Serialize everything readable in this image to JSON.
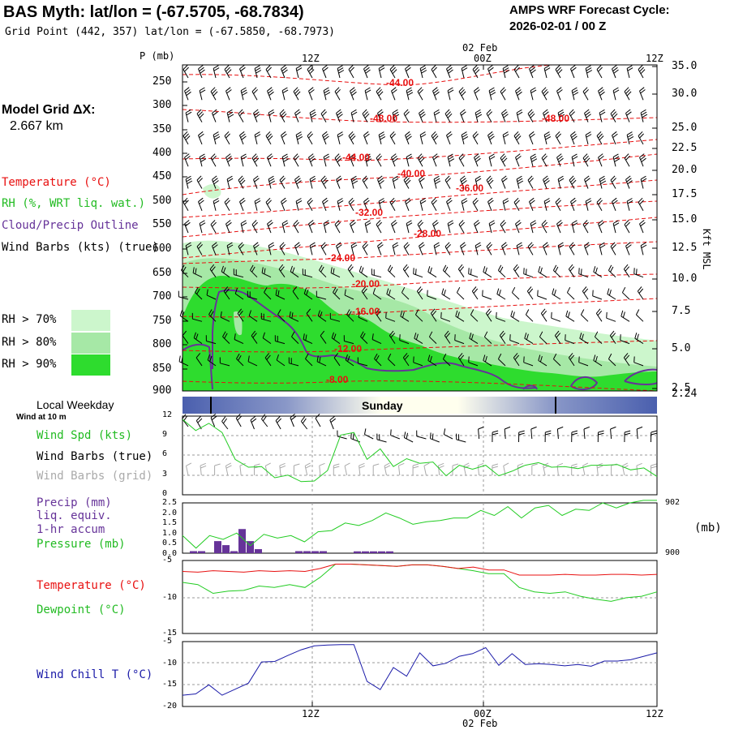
{
  "header": {
    "title": "BAS Myth:  lat/lon = (-67.5705, -68.7834)",
    "grid_point": "Grid Point (442, 357) lat/lon = (-67.5850, -68.7973)",
    "cycle_label": "AMPS WRF Forecast Cycle:",
    "cycle_time": "2026-02-01 / 00  Z"
  },
  "sidebar": {
    "model_grid_label": "Model Grid ΔX:",
    "model_grid_value": "2.667 km",
    "temp_legend": "Temperature (°C)",
    "rh_legend": "RH (%, WRT liq. wat.)",
    "cloud_legend": "Cloud/Precip Outline",
    "wind_legend": "Wind Barbs (kts) (true)",
    "rh70": "RH > 70%",
    "rh80": "RH > 80%",
    "rh90": "RH > 90%",
    "local_weekday": "Local Weekday",
    "wind_at": "Wind at 10 m",
    "wind_spd": "Wind Spd (kts)",
    "wind_barbs_true": "Wind Barbs (true)",
    "wind_barbs_grid": "Wind Barbs (grid)",
    "precip1": "Precip (mm)",
    "precip2": "liq. equiv.",
    "precip3": "1-hr accum",
    "pressure": "Pressure (mb)",
    "temperature": "Temperature (°C)",
    "dewpoint": "Dewpoint (°C)",
    "windchill": "Wind Chill T (°C)"
  },
  "colors": {
    "temp": "#e81010",
    "rh70": "#ccf6cc",
    "rh80": "#a6e8a6",
    "rh90": "#2edc2e",
    "cloud": "#663399",
    "green": "#22cc22",
    "blue": "#1a1aa8",
    "barb": "#000000",
    "grid_barb": "#aaaaaa",
    "day_band": "#4a5fae",
    "day_mid": "#ffffee"
  },
  "chart_data": [
    {
      "type": "cross-section",
      "name": "upper-air",
      "x_axis": {
        "ticks": [
          "12Z",
          "00Z",
          "12Z"
        ],
        "date_label": "02 Feb"
      },
      "y_label": "P (mb)",
      "y_ticks": [
        250,
        300,
        350,
        400,
        450,
        500,
        550,
        600,
        650,
        700,
        750,
        800,
        850,
        900
      ],
      "right_label": "Kft MSL",
      "right_ticks": [
        "35.0",
        "30.0",
        "25.0",
        "22.5",
        "20.0",
        "17.5",
        "15.0",
        "12.5",
        "10.0",
        "7.5",
        "5.0",
        "2.5",
        "2.24"
      ],
      "temp_labels": [
        "-44.00",
        "-48.00",
        "-48.00",
        "-44.00",
        "-40.00",
        "-36.00",
        "-32.00",
        "-28.00",
        "-24.00",
        "-20.00",
        "-16.00",
        "-12.00",
        "-8.00"
      ],
      "weekday_label": "Sunday"
    },
    {
      "type": "line",
      "name": "wind-speed",
      "ylim": [
        0,
        12
      ],
      "y_ticks": [
        "12",
        "9",
        "6",
        "3",
        "0"
      ],
      "values": [
        11.5,
        9.8,
        10.9,
        9.5,
        5.4,
        4.2,
        4.3,
        2.6,
        3.0,
        2.0,
        2.1,
        3.7,
        9.1,
        9.5,
        5.4,
        7.0,
        4.3,
        5.5,
        4.8,
        5.0,
        2.9,
        4.5,
        3.9,
        4.5,
        2.9,
        3.6,
        4.5,
        4.9,
        4.2,
        4.3,
        4.0,
        4.5,
        4.5,
        4.6,
        3.8,
        4.1,
        2.8
      ]
    },
    {
      "type": "bar+line",
      "name": "precip-pressure",
      "precip_ylim": [
        0,
        2.5
      ],
      "precip_ticks": [
        "2.5",
        "2.0",
        "1.5",
        "1.0",
        "0.5",
        "0.0"
      ],
      "pressure_ticks": [
        "902",
        "900"
      ],
      "pressure_unit": "(mb)",
      "precip_values": [
        0.1,
        0.1,
        0.0,
        0.6,
        0.4,
        0.1,
        1.2,
        0.6,
        0.2,
        0.0,
        0.0,
        0.0,
        0.0,
        0.1,
        0.1,
        0.1,
        0.1,
        0.0
      ],
      "pressure_values": [
        900.7,
        900.2,
        900.7,
        900.55,
        900.8,
        900.3,
        900.75,
        900.6,
        900.7,
        900.45,
        900.85,
        900.9,
        901.2,
        901.1,
        901.3,
        901.6,
        901.4,
        901.15,
        901.25,
        901.3,
        901.4,
        901.4,
        901.7,
        901.5,
        901.85,
        901.4,
        901.8,
        901.9,
        901.5,
        901.75,
        901.7,
        902.0,
        901.8,
        902.0,
        902.1,
        902.1
      ]
    },
    {
      "type": "line",
      "name": "temperature-dewpoint",
      "ylim": [
        -15,
        -5
      ],
      "y_ticks": [
        "-5",
        "-10",
        "-15"
      ],
      "series": [
        {
          "name": "Temperature",
          "values": [
            -6.5,
            -6.6,
            -6.4,
            -6.5,
            -6.6,
            -6.4,
            -6.5,
            -6.4,
            -6.5,
            -6.1,
            -5.5,
            -5.5,
            -5.6,
            -5.7,
            -5.8,
            -5.6,
            -5.6,
            -5.8,
            -6.1,
            -5.9,
            -6.3,
            -6.3,
            -7.0,
            -7.0,
            -7.0,
            -6.9,
            -7.0,
            -7.0,
            -6.9,
            -6.9,
            -7.0,
            -6.9
          ]
        },
        {
          "name": "Dewpoint",
          "values": [
            -8.0,
            -8.3,
            -9.5,
            -9.2,
            -9.1,
            -8.5,
            -8.7,
            -8.3,
            -8.7,
            -7.3,
            -5.5,
            -5.5,
            -5.6,
            -5.7,
            -5.8,
            -5.6,
            -5.6,
            -5.8,
            -6.1,
            -6.4,
            -6.8,
            -6.8,
            -8.7,
            -9.3,
            -9.5,
            -9.3,
            -9.9,
            -10.3,
            -10.6,
            -10.1,
            -9.9,
            -9.3
          ]
        }
      ]
    },
    {
      "type": "line",
      "name": "wind-chill",
      "ylim": [
        -20,
        -5
      ],
      "y_ticks": [
        "-5",
        "-10",
        "-15",
        "-20"
      ],
      "values": [
        -17.4,
        -17.1,
        -15.0,
        -17.4,
        -16.0,
        -14.6,
        -9.7,
        -9.6,
        -8.2,
        -6.9,
        -6.0,
        -5.8,
        -5.7,
        -5.7,
        -14.2,
        -16.1,
        -11.0,
        -13.0,
        -7.6,
        -10.6,
        -10.0,
        -8.4,
        -7.8,
        -6.4,
        -10.5,
        -7.8,
        -10.3,
        -10.1,
        -10.3,
        -10.6,
        -10.3,
        -10.7,
        -9.5,
        -9.5,
        -9.2,
        -8.4,
        -7.6
      ]
    }
  ]
}
